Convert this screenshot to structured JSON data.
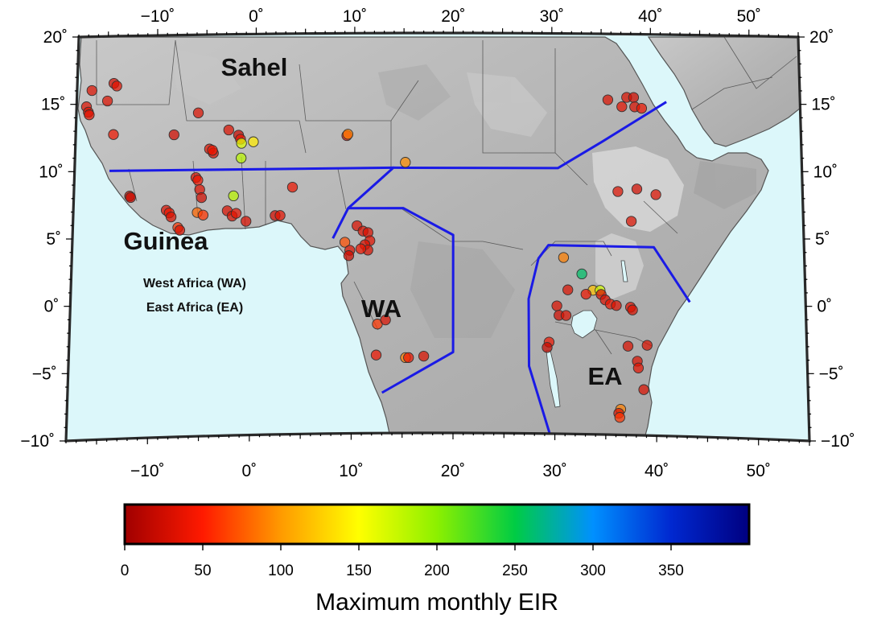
{
  "axes": {
    "lon_ticks": [
      {
        "value": -10,
        "label": "−10˚"
      },
      {
        "value": 0,
        "label": "0˚"
      },
      {
        "value": 10,
        "label": "10˚"
      },
      {
        "value": 20,
        "label": "20˚"
      },
      {
        "value": 30,
        "label": "30˚"
      },
      {
        "value": 40,
        "label": "40˚"
      },
      {
        "value": 50,
        "label": "50˚"
      }
    ],
    "lat_ticks": [
      {
        "value": 20,
        "label": "20˚"
      },
      {
        "value": 15,
        "label": "15˚"
      },
      {
        "value": 10,
        "label": "10˚"
      },
      {
        "value": 5,
        "label": "5˚"
      },
      {
        "value": 0,
        "label": "0˚"
      },
      {
        "value": -5,
        "label": "−5˚"
      },
      {
        "value": -10,
        "label": "−10˚"
      }
    ],
    "lon_range": [
      -18,
      55
    ],
    "lat_range": [
      -10,
      20
    ]
  },
  "regions": {
    "sahel": "Sahel",
    "guinea": "Guinea",
    "wa": "WA",
    "ea": "EA",
    "legend_wa": "West Africa (WA)",
    "legend_ea": "East Africa (EA)"
  },
  "colorbar": {
    "title": "Maximum monthly EIR",
    "range": [
      0,
      400
    ],
    "ticks": [
      {
        "value": 0,
        "label": "0"
      },
      {
        "value": 50,
        "label": "50"
      },
      {
        "value": 100,
        "label": "100"
      },
      {
        "value": 150,
        "label": "150"
      },
      {
        "value": 200,
        "label": "200"
      },
      {
        "value": 250,
        "label": "250"
      },
      {
        "value": 300,
        "label": "300"
      },
      {
        "value": 350,
        "label": "350"
      }
    ],
    "stops": [
      "#a00000",
      "#ff1a00",
      "#ff9a00",
      "#ffff00",
      "#8cf000",
      "#00cc44",
      "#0090ff",
      "#0028d0",
      "#000080"
    ]
  },
  "colors": {
    "ocean": "#dcf7fa",
    "land": "#bcbcbc",
    "land_dark": "#7a7a7a",
    "boundary": "#1a1ae6",
    "border": "#2a2a2a"
  },
  "boundaries": {
    "sahel_guinea": [
      [
        -14.5,
        10
      ],
      [
        14,
        10
      ],
      [
        30.5,
        10
      ],
      [
        35,
        12
      ],
      [
        41.5,
        15
      ]
    ],
    "wa_region": [
      [
        8,
        4.5
      ],
      [
        9.5,
        7
      ],
      [
        12.5,
        9
      ],
      [
        14,
        10
      ],
      [
        14,
        10
      ],
      [
        9.5,
        7
      ],
      [
        15,
        7
      ],
      [
        20,
        5
      ],
      [
        20,
        -4
      ],
      [
        13,
        -7
      ]
    ],
    "ea_region": [
      [
        29.5,
        -10
      ],
      [
        27.5,
        -5
      ],
      [
        27.5,
        0
      ],
      [
        28.5,
        3
      ],
      [
        29.5,
        4
      ],
      [
        40,
        4
      ],
      [
        43.5,
        0
      ]
    ]
  },
  "sites": [
    {
      "lon": -16.5,
      "lat": 16.0,
      "eir": 30
    },
    {
      "lon": -14.3,
      "lat": 16.5,
      "eir": 25
    },
    {
      "lon": -14.0,
      "lat": 16.3,
      "eir": 35
    },
    {
      "lon": -14.9,
      "lat": 15.2,
      "eir": 30
    },
    {
      "lon": -17.0,
      "lat": 14.8,
      "eir": 30
    },
    {
      "lon": -16.8,
      "lat": 14.4,
      "eir": 30
    },
    {
      "lon": -16.7,
      "lat": 14.2,
      "eir": 35
    },
    {
      "lon": -14.2,
      "lat": 12.7,
      "eir": 40
    },
    {
      "lon": -5.7,
      "lat": 14.2,
      "eir": 30
    },
    {
      "lon": -8.1,
      "lat": 12.6,
      "eir": 25
    },
    {
      "lon": -4.5,
      "lat": 11.5,
      "eir": 35
    },
    {
      "lon": -4.1,
      "lat": 11.2,
      "eir": 30
    },
    {
      "lon": -4.2,
      "lat": 11.4,
      "eir": 40
    },
    {
      "lon": -2.6,
      "lat": 12.9,
      "eir": 30
    },
    {
      "lon": -1.6,
      "lat": 12.5,
      "eir": 20
    },
    {
      "lon": -1.4,
      "lat": 12.2,
      "eir": 40
    },
    {
      "lon": -1.3,
      "lat": 11.9,
      "eir": 165
    },
    {
      "lon": -0.1,
      "lat": 12.0,
      "eir": 140
    },
    {
      "lon": -1.3,
      "lat": 10.8,
      "eir": 180
    },
    {
      "lon": 9.3,
      "lat": 12.4,
      "eir": 35
    },
    {
      "lon": 9.4,
      "lat": 12.5,
      "eir": 90
    },
    {
      "lon": 15.2,
      "lat": 10.4,
      "eir": 95
    },
    {
      "lon": -5.8,
      "lat": 9.4,
      "eir": 30
    },
    {
      "lon": -5.6,
      "lat": 9.2,
      "eir": 40
    },
    {
      "lon": -5.4,
      "lat": 8.5,
      "eir": 30
    },
    {
      "lon": -5.2,
      "lat": 7.9,
      "eir": 25
    },
    {
      "lon": -2.0,
      "lat": 8.0,
      "eir": 180
    },
    {
      "lon": -12.4,
      "lat": 8.1,
      "eir": 30
    },
    {
      "lon": -12.3,
      "lat": 8.0,
      "eir": 20
    },
    {
      "lon": -8.7,
      "lat": 7.0,
      "eir": 30
    },
    {
      "lon": -8.4,
      "lat": 6.8,
      "eir": 40
    },
    {
      "lon": -8.2,
      "lat": 6.5,
      "eir": 30
    },
    {
      "lon": -7.5,
      "lat": 5.7,
      "eir": 60
    },
    {
      "lon": -7.3,
      "lat": 5.5,
      "eir": 30
    },
    {
      "lon": -5.6,
      "lat": 6.8,
      "eir": 80
    },
    {
      "lon": -5.0,
      "lat": 6.6,
      "eir": 60
    },
    {
      "lon": -2.6,
      "lat": 6.9,
      "eir": 30
    },
    {
      "lon": -2.1,
      "lat": 6.5,
      "eir": 30
    },
    {
      "lon": -1.7,
      "lat": 6.7,
      "eir": 35
    },
    {
      "lon": -0.7,
      "lat": 6.1,
      "eir": 30
    },
    {
      "lon": 2.2,
      "lat": 6.5,
      "eir": 25
    },
    {
      "lon": 2.7,
      "lat": 6.5,
      "eir": 35
    },
    {
      "lon": 3.9,
      "lat": 8.6,
      "eir": 40
    },
    {
      "lon": 10.4,
      "lat": 5.7,
      "eir": 30
    },
    {
      "lon": 11.0,
      "lat": 5.3,
      "eir": 30
    },
    {
      "lon": 11.5,
      "lat": 4.9,
      "eir": 30
    },
    {
      "lon": 11.7,
      "lat": 4.3,
      "eir": 35
    },
    {
      "lon": 11.2,
      "lat": 4.0,
      "eir": 30
    },
    {
      "lon": 11.5,
      "lat": 3.6,
      "eir": 30
    },
    {
      "lon": 10.8,
      "lat": 3.7,
      "eir": 40
    },
    {
      "lon": 9.2,
      "lat": 4.2,
      "eir": 70
    },
    {
      "lon": 9.7,
      "lat": 3.6,
      "eir": 30
    },
    {
      "lon": 9.6,
      "lat": 3.2,
      "eir": 25
    },
    {
      "lon": 12.5,
      "lat": -1.9,
      "eir": 60
    },
    {
      "lon": 13.3,
      "lat": -1.6,
      "eir": 30
    },
    {
      "lon": 12.4,
      "lat": -4.2,
      "eir": 40
    },
    {
      "lon": 15.3,
      "lat": -4.4,
      "eir": 90
    },
    {
      "lon": 15.6,
      "lat": -4.4,
      "eir": 40
    },
    {
      "lon": 17.1,
      "lat": -4.3,
      "eir": 30
    },
    {
      "lon": 35.6,
      "lat": 15.1,
      "eir": 30
    },
    {
      "lon": 37.5,
      "lat": 15.3,
      "eir": 30
    },
    {
      "lon": 38.2,
      "lat": 15.3,
      "eir": 25
    },
    {
      "lon": 37.0,
      "lat": 14.6,
      "eir": 35
    },
    {
      "lon": 38.3,
      "lat": 14.6,
      "eir": 30
    },
    {
      "lon": 39.0,
      "lat": 14.5,
      "eir": 40
    },
    {
      "lon": 36.5,
      "lat": 8.3,
      "eir": 30
    },
    {
      "lon": 38.4,
      "lat": 8.5,
      "eir": 25
    },
    {
      "lon": 40.3,
      "lat": 8.1,
      "eir": 30
    },
    {
      "lon": 37.8,
      "lat": 6.1,
      "eir": 30
    },
    {
      "lon": 31.0,
      "lat": 3.1,
      "eir": 90
    },
    {
      "lon": 32.8,
      "lat": 1.9,
      "eir": 260
    },
    {
      "lon": 33.9,
      "lat": 0.7,
      "eir": 120
    },
    {
      "lon": 34.6,
      "lat": 0.7,
      "eir": 170
    },
    {
      "lon": 34.7,
      "lat": 0.4,
      "eir": 30
    },
    {
      "lon": 33.2,
      "lat": 0.4,
      "eir": 40
    },
    {
      "lon": 35.1,
      "lat": 0.0,
      "eir": 30
    },
    {
      "lon": 35.6,
      "lat": -0.3,
      "eir": 40
    },
    {
      "lon": 36.2,
      "lat": -0.4,
      "eir": 30
    },
    {
      "lon": 37.6,
      "lat": -0.5,
      "eir": 35
    },
    {
      "lon": 37.8,
      "lat": -0.7,
      "eir": 30
    },
    {
      "lon": 30.3,
      "lat": -0.5,
      "eir": 30
    },
    {
      "lon": 30.5,
      "lat": -1.2,
      "eir": 25
    },
    {
      "lon": 31.2,
      "lat": -1.2,
      "eir": 30
    },
    {
      "lon": 31.4,
      "lat": 0.7,
      "eir": 30
    },
    {
      "lon": 29.5,
      "lat": -3.2,
      "eir": 40
    },
    {
      "lon": 29.3,
      "lat": -3.6,
      "eir": 20
    },
    {
      "lon": 37.3,
      "lat": -3.4,
      "eir": 30
    },
    {
      "lon": 38.2,
      "lat": -4.5,
      "eir": 30
    },
    {
      "lon": 38.3,
      "lat": -5.0,
      "eir": 35
    },
    {
      "lon": 39.2,
      "lat": -3.3,
      "eir": 30
    },
    {
      "lon": 38.8,
      "lat": -6.6,
      "eir": 30
    },
    {
      "lon": 36.5,
      "lat": -8.1,
      "eir": 90
    },
    {
      "lon": 36.3,
      "lat": -8.4,
      "eir": 30
    },
    {
      "lon": 36.4,
      "lat": -8.7,
      "eir": 60
    }
  ]
}
